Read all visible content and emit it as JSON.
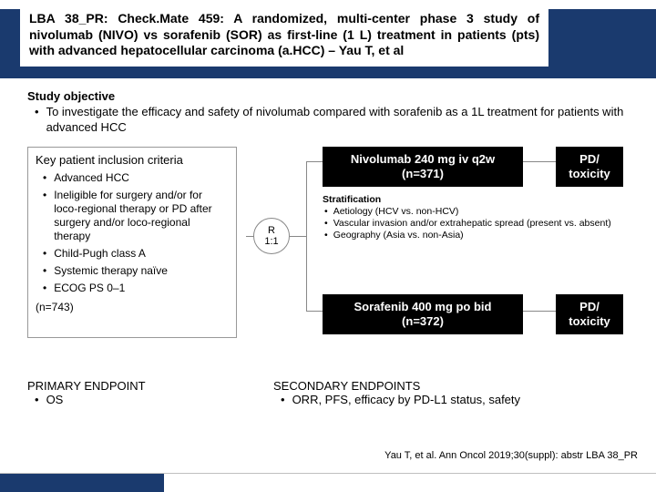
{
  "colors": {
    "brand_navy": "#1a3a6e",
    "box_border": "#999999",
    "line": "#888888",
    "black": "#000000",
    "white": "#ffffff"
  },
  "title": "LBA 38_PR: Check.Mate 459: A randomized, multi-center phase 3 study of nivolumab (NIVO) vs sorafenib (SOR) as first-line (1 L) treatment in patients (pts) with advanced hepatocellular carcinoma (a.HCC) – Yau T, et al",
  "objective": {
    "heading": "Study objective",
    "bullet": "To investigate the efficacy and safety of nivolumab compared with sorafenib as a 1L treatment for patients with advanced HCC"
  },
  "inclusion": {
    "heading": "Key patient inclusion criteria",
    "items": [
      "Advanced HCC",
      "Ineligible for surgery and/or for loco-regional therapy or PD after surgery and/or loco-regional therapy",
      "Child-Pugh class A",
      "Systemic therapy naïve",
      "ECOG PS 0–1"
    ],
    "n_total": "(n=743)"
  },
  "randomization": {
    "line1": "R",
    "line2": "1:1"
  },
  "arms": {
    "a": {
      "line1": "Nivolumab 240 mg iv q2w",
      "line2": "(n=371)"
    },
    "b": {
      "line1": "Sorafenib 400 mg po bid",
      "line2": "(n=372)"
    }
  },
  "outcome": {
    "line1": "PD/",
    "line2": "toxicity"
  },
  "stratification": {
    "heading": "Stratification",
    "items": [
      "Aetiology (HCV vs. non-HCV)",
      "Vascular invasion and/or extrahepatic spread (present vs. absent)",
      "Geography (Asia vs. non-Asia)"
    ]
  },
  "endpoints": {
    "primary": {
      "heading": "PRIMARY ENDPOINT",
      "item": "OS"
    },
    "secondary": {
      "heading": "SECONDARY ENDPOINTS",
      "item": "ORR, PFS, efficacy by PD-L1 status, safety"
    }
  },
  "citation": "Yau T, et al. Ann Oncol 2019;30(suppl): abstr LBA 38_PR"
}
